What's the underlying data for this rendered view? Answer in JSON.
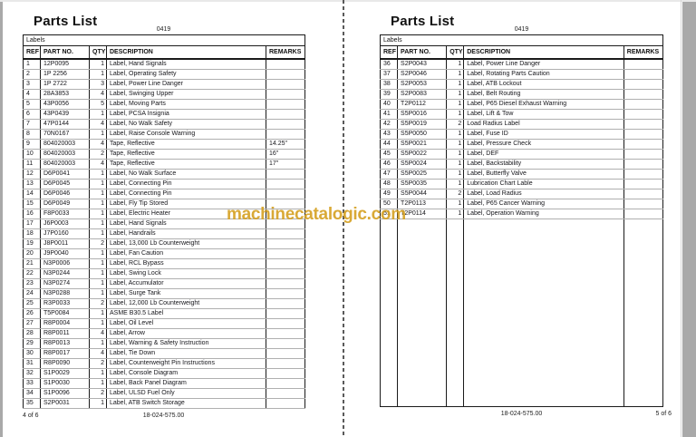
{
  "watermark": {
    "text": "machinecatalogic.com",
    "color": "#D5A021"
  },
  "columns": [
    "REF",
    "PART NO.",
    "QTY",
    "DESCRIPTION",
    "REMARKS"
  ],
  "pages": [
    {
      "title": "Parts List",
      "doc_number": "0419",
      "group_header": "Labels",
      "rows": [
        [
          "1",
          "12P0095",
          "1",
          "Label, Hand Signals",
          ""
        ],
        [
          "2",
          "1P 2256",
          "1",
          "Label, Operating Safety",
          ""
        ],
        [
          "3",
          "1P 2722",
          "3",
          "Label, Power Line Danger",
          ""
        ],
        [
          "4",
          "28A3853",
          "4",
          "Label, Swinging Upper",
          ""
        ],
        [
          "5",
          "43P0056",
          "5",
          "Label, Moving Parts",
          ""
        ],
        [
          "6",
          "43P0439",
          "1",
          "Label, PCSA Insignia",
          ""
        ],
        [
          "7",
          "47P0144",
          "4",
          "Label, No Walk Safety",
          ""
        ],
        [
          "8",
          "70N0167",
          "1",
          "Label, Raise Console Warning",
          ""
        ],
        [
          "9",
          "804020003",
          "4",
          "Tape, Reflective",
          "14.25\""
        ],
        [
          "10",
          "804020003",
          "2",
          "Tape, Reflective",
          "16\""
        ],
        [
          "11",
          "804020003",
          "4",
          "Tape, Reflective",
          "17\""
        ],
        [
          "12",
          "D6P0041",
          "1",
          "Label, No Walk Surface",
          ""
        ],
        [
          "13",
          "D6P0045",
          "1",
          "Label, Connecting Pin",
          ""
        ],
        [
          "14",
          "D6P0046",
          "1",
          "Label, Connecting Pin",
          ""
        ],
        [
          "15",
          "D6P0049",
          "1",
          "Label, Fly Tip Stored",
          ""
        ],
        [
          "16",
          "F8P0033",
          "1",
          "Label, Electric Heater",
          ""
        ],
        [
          "17",
          "J6P0003",
          "1",
          "Label, Hand Signals",
          ""
        ],
        [
          "18",
          "J7P0160",
          "1",
          "Label, Handrails",
          ""
        ],
        [
          "19",
          "J8P0011",
          "2",
          "Label, 13,000 Lb Counterweight",
          ""
        ],
        [
          "20",
          "J9P0040",
          "1",
          "Label, Fan Caution",
          ""
        ],
        [
          "21",
          "N3P0006",
          "1",
          "Label, RCL Bypass",
          ""
        ],
        [
          "22",
          "N3P0244",
          "1",
          "Label, Swing Lock",
          ""
        ],
        [
          "23",
          "N3P0274",
          "1",
          "Label, Accumulator",
          ""
        ],
        [
          "24",
          "N3P0288",
          "1",
          "Label, Surge Tank",
          ""
        ],
        [
          "25",
          "R3P0033",
          "2",
          "Label, 12,000 Lb Counterweight",
          ""
        ],
        [
          "26",
          "T5P0084",
          "1",
          "ASME B30.5 Label",
          ""
        ],
        [
          "27",
          "R8P0004",
          "1",
          "Label, Oil Level",
          ""
        ],
        [
          "28",
          "R8P0011",
          "4",
          "Label, Arrow",
          ""
        ],
        [
          "29",
          "R8P0013",
          "1",
          "Label, Warning & Safety Instruction",
          ""
        ],
        [
          "30",
          "R8P0017",
          "4",
          "Label, Tie Down",
          ""
        ],
        [
          "31",
          "R8P0090",
          "2",
          "Label, Counterweight Pin Instructions",
          ""
        ],
        [
          "32",
          "S1P0029",
          "1",
          "Label, Console Diagram",
          ""
        ],
        [
          "33",
          "S1P0030",
          "1",
          "Label, Back Panel Diagram",
          ""
        ],
        [
          "34",
          "S1P0096",
          "2",
          "Label, ULSD Fuel Only",
          ""
        ],
        [
          "35",
          "S2P0031",
          "1",
          "Label, ATB Switch Storage",
          ""
        ]
      ],
      "footer": {
        "left": "4 of 6",
        "center": "18-024-575.00",
        "right": ""
      }
    },
    {
      "title": "Parts List",
      "doc_number": "0419",
      "group_header": "Labels",
      "rows": [
        [
          "36",
          "S2P0043",
          "1",
          "Label, Power Line Danger",
          ""
        ],
        [
          "37",
          "S2P0046",
          "1",
          "Label, Rotating Parts Caution",
          ""
        ],
        [
          "38",
          "S2P0053",
          "1",
          "Label, ATB Lockout",
          ""
        ],
        [
          "39",
          "S2P0083",
          "1",
          "Label, Belt Routing",
          ""
        ],
        [
          "40",
          "T2P0112",
          "1",
          "Label, P65 Diesel Exhaust Warning",
          ""
        ],
        [
          "41",
          "S5P0016",
          "1",
          "Label, Lift & Tow",
          ""
        ],
        [
          "42",
          "S5P0019",
          "2",
          "Load Radius Label",
          ""
        ],
        [
          "43",
          "S5P0050",
          "1",
          "Label, Fuse ID",
          ""
        ],
        [
          "44",
          "S5P0021",
          "1",
          "Label, Pressure Check",
          ""
        ],
        [
          "45",
          "S5P0022",
          "1",
          "Label, DEF",
          ""
        ],
        [
          "46",
          "S5P0024",
          "1",
          "Label, Backstability",
          ""
        ],
        [
          "47",
          "S5P0025",
          "1",
          "Label, Butterfly Valve",
          ""
        ],
        [
          "48",
          "S5P0035",
          "1",
          "Lubrication Chart Lable",
          ""
        ],
        [
          "49",
          "S5P0044",
          "2",
          "Label, Load Radius",
          ""
        ],
        [
          "50",
          "T2P0113",
          "1",
          "Label, P65 Cancer Warning",
          ""
        ],
        [
          "51",
          "T2P0114",
          "1",
          "Label, Operation Warning",
          ""
        ]
      ],
      "footer": {
        "left": "",
        "center": "18-024-575.00",
        "right": "5 of 6"
      }
    }
  ]
}
